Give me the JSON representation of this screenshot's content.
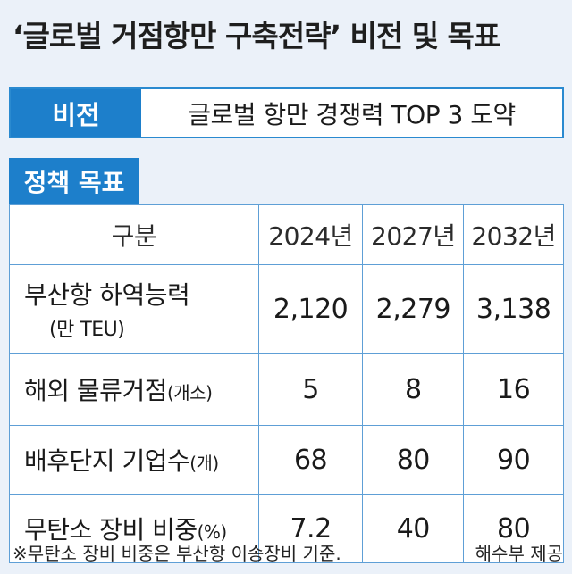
{
  "title": "‘글로벌 거점항만 구축전략’ 비전 및 목표",
  "vision": {
    "label": "비전",
    "text": "글로벌 항만 경쟁력 TOP 3 도약"
  },
  "policy": {
    "label": "정책 목표",
    "headers": [
      "구분",
      "2024년",
      "2027년",
      "2032년"
    ],
    "rows": [
      {
        "label": "부산항 하역능력",
        "unit": "(만 TEU)",
        "values": [
          "2,120",
          "2,279",
          "3,138"
        ]
      },
      {
        "label": "해외 물류거점",
        "unit": "(개소)",
        "values": [
          "5",
          "8",
          "16"
        ]
      },
      {
        "label": "배후단지 기업수",
        "unit": "(개)",
        "values": [
          "68",
          "80",
          "90"
        ]
      },
      {
        "label": "무탄소 장비 비중",
        "unit": "(%)",
        "values": [
          "7.2",
          "40",
          "80"
        ]
      }
    ]
  },
  "footer": {
    "note": "※무탄소 장비 비중은 부산항 이송장비 기준.",
    "source": "해수부 제공"
  }
}
